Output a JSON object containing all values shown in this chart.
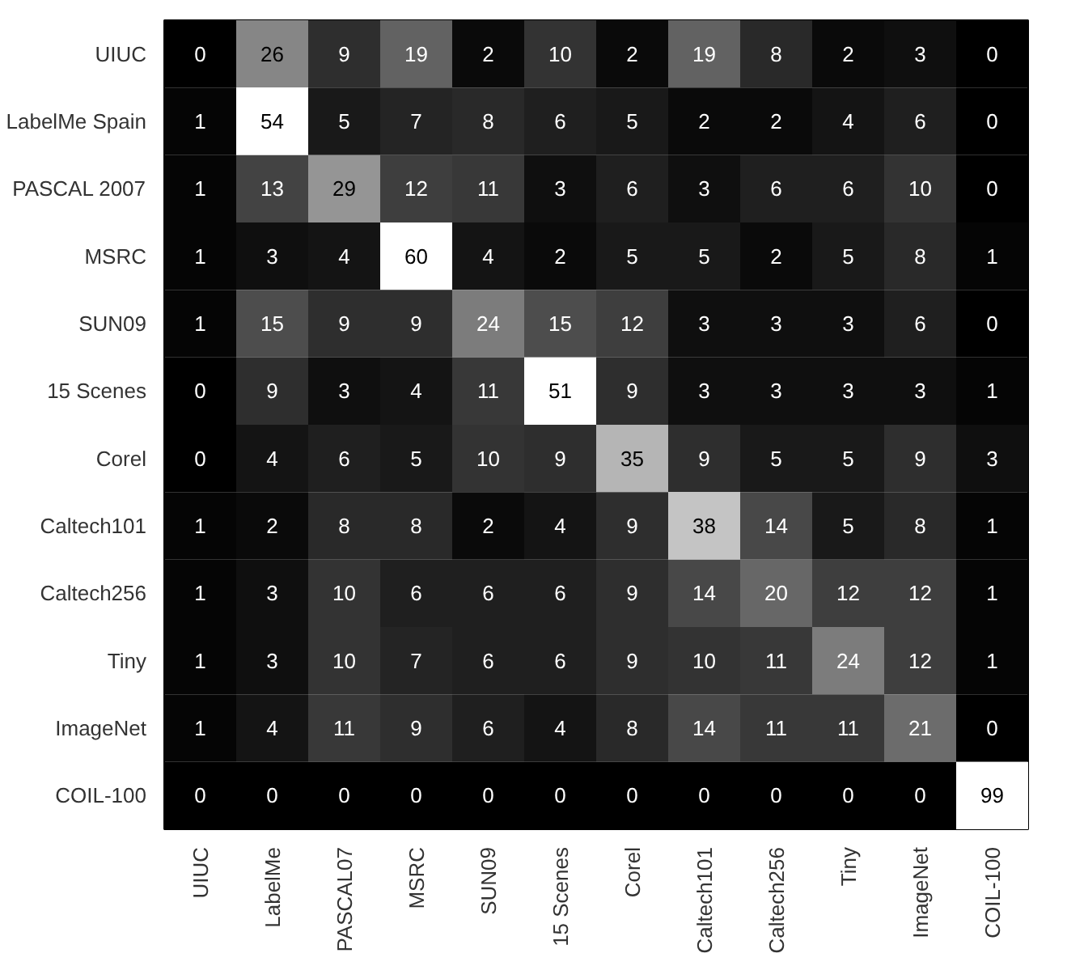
{
  "chart_data": {
    "type": "heatmap",
    "categories": [
      "UIUC",
      "LabelMe",
      "PASCAL07",
      "MSRC",
      "SUN09",
      "15 Scenes",
      "Corel",
      "Caltech101",
      "Caltech256",
      "Tiny",
      "ImageNet",
      "COIL-100"
    ],
    "y_categories": [
      "UIUC",
      "LabelMe Spain",
      "PASCAL 2007",
      "MSRC",
      "SUN09",
      "15 Scenes",
      "Corel",
      "Caltech101",
      "Caltech256",
      "Tiny",
      "ImageNet",
      "COIL-100"
    ],
    "cells": [
      [
        0,
        26,
        9,
        19,
        2,
        10,
        2,
        19,
        8,
        2,
        3,
        0
      ],
      [
        1,
        54,
        5,
        7,
        8,
        6,
        5,
        2,
        2,
        4,
        6,
        0
      ],
      [
        1,
        13,
        29,
        12,
        11,
        3,
        6,
        3,
        6,
        6,
        10,
        0
      ],
      [
        1,
        3,
        4,
        60,
        4,
        2,
        5,
        5,
        2,
        5,
        8,
        1
      ],
      [
        1,
        15,
        9,
        9,
        24,
        15,
        12,
        3,
        3,
        3,
        6,
        0
      ],
      [
        0,
        9,
        3,
        4,
        11,
        51,
        9,
        3,
        3,
        3,
        3,
        1
      ],
      [
        0,
        4,
        6,
        5,
        10,
        9,
        35,
        9,
        5,
        5,
        9,
        3
      ],
      [
        1,
        2,
        8,
        8,
        2,
        4,
        9,
        38,
        14,
        5,
        8,
        1
      ],
      [
        1,
        3,
        10,
        6,
        6,
        6,
        9,
        14,
        20,
        12,
        12,
        1
      ],
      [
        1,
        3,
        10,
        7,
        6,
        6,
        9,
        10,
        11,
        24,
        12,
        1
      ],
      [
        1,
        4,
        11,
        9,
        6,
        4,
        8,
        14,
        11,
        11,
        21,
        0
      ],
      [
        0,
        0,
        0,
        0,
        0,
        0,
        0,
        0,
        0,
        0,
        0,
        99
      ]
    ],
    "data_labels": true
  }
}
